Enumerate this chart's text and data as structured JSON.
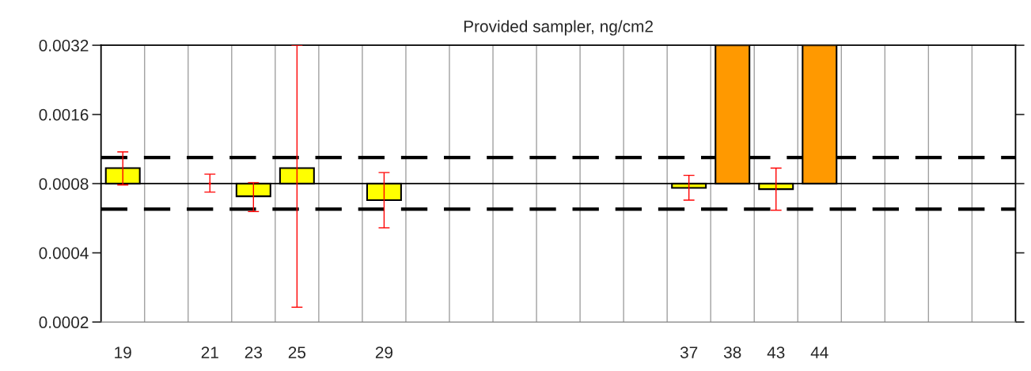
{
  "chart_data": {
    "type": "bar",
    "title": "Provided sampler, ng/cm2",
    "categories": [
      "19",
      null,
      "21",
      "23",
      "25",
      null,
      "29",
      null,
      null,
      null,
      null,
      null,
      null,
      "37",
      "38",
      "43",
      "44",
      null,
      null,
      null,
      null
    ],
    "series": [
      {
        "values": [
          0.000135,
          null,
          null,
          -9.5e-05,
          0.000135,
          null,
          -0.000122,
          null,
          null,
          null,
          null,
          null,
          null,
          -3.3e-05,
          0.0024,
          -4.3e-05,
          0.0024,
          null,
          null,
          null,
          null
        ],
        "base": [
          0.0008,
          null,
          null,
          0.0008,
          0.0008,
          null,
          0.0008,
          null,
          null,
          null,
          null,
          null,
          null,
          0.0008,
          0.0008,
          0.0008,
          0.0008,
          null,
          null,
          null,
          null
        ],
        "colors": [
          "#ffff00",
          null,
          null,
          "#ffff00",
          "#ffff00",
          null,
          "#ffff00",
          null,
          null,
          null,
          null,
          null,
          null,
          "#ffff00",
          "#ff9900",
          "#ffff00",
          "#ff9900",
          null,
          null,
          null,
          null
        ],
        "errors": [
          [
            0.00079,
            0.0011
          ],
          null,
          null,
          [
            0.000605,
            0.000808
          ],
          [
            0.000232,
            0.0032
          ],
          null,
          [
            0.000514,
            0.000894
          ],
          null,
          null,
          null,
          null,
          null,
          null,
          [
            0.000678,
            0.00087
          ],
          null,
          [
            0.000613,
            0.000935
          ],
          null,
          null,
          null,
          null,
          null
        ]
      },
      {
        "type": "scatter",
        "x": [
          "21"
        ],
        "values": [
          0.0008
        ],
        "errors": [
          [
            0.000735,
            0.00088
          ]
        ],
        "marker": "circle",
        "color": "#ff0000"
      }
    ],
    "ylim": [
      0.0002,
      0.0032
    ],
    "yticks": [
      0.0002,
      0.0004,
      0.0008,
      0.0016,
      0.0032
    ],
    "log": true,
    "grid": "x",
    "ref_lines": [
      {
        "axis": "y",
        "value": 0.0008,
        "color": "#000000",
        "line_style": "solid"
      },
      {
        "axis": "y",
        "value": 0.00104,
        "color": "#000000",
        "line_style": "dashed"
      },
      {
        "axis": "y",
        "value": 0.00062,
        "color": "#000000",
        "line_style": "dashed"
      }
    ]
  }
}
